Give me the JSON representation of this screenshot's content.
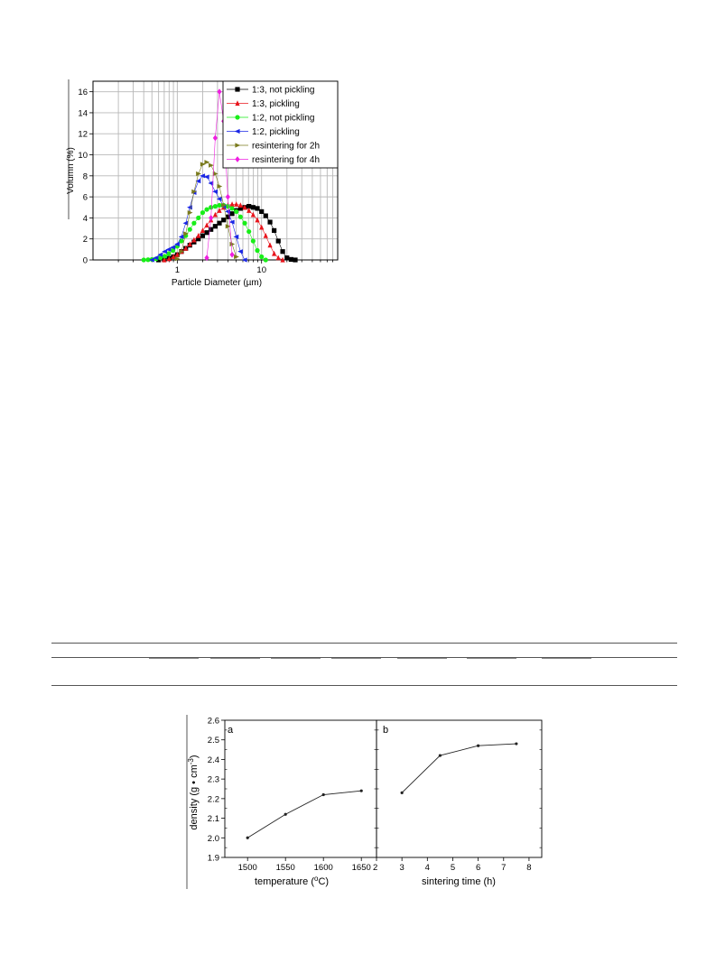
{
  "chart_data": [
    {
      "type": "scatter",
      "title": "",
      "xlabel": "Particle Diameter (µm)",
      "ylabel": "Volumn (%)",
      "xscale": "log",
      "xlim": [
        0.1,
        80
      ],
      "ylim": [
        0,
        17
      ],
      "x_ticks": [
        1,
        10
      ],
      "y_ticks": [
        0,
        2,
        4,
        6,
        8,
        10,
        12,
        14,
        16
      ],
      "grid": true,
      "legend_position": "top-right",
      "series": [
        {
          "name": "1:3, not pickling",
          "color": "#000000",
          "marker": "square",
          "x": [
            0.6,
            0.7,
            0.8,
            0.9,
            1.0,
            1.12,
            1.26,
            1.41,
            1.58,
            1.78,
            2.0,
            2.24,
            2.51,
            2.82,
            3.16,
            3.55,
            3.98,
            4.47,
            5.01,
            5.62,
            6.31,
            7.08,
            7.94,
            8.91,
            10.0,
            11.2,
            12.6,
            14.1,
            15.8,
            17.8,
            20.0,
            22.4,
            25.1
          ],
          "values": [
            0.0,
            0.05,
            0.15,
            0.3,
            0.5,
            0.8,
            1.1,
            1.4,
            1.7,
            2.0,
            2.3,
            2.6,
            2.9,
            3.2,
            3.5,
            3.8,
            4.1,
            4.4,
            4.7,
            4.9,
            5.0,
            5.1,
            5.0,
            4.9,
            4.6,
            4.2,
            3.6,
            2.8,
            1.8,
            0.8,
            0.2,
            0.05,
            0.0
          ]
        },
        {
          "name": "1:3, pickling",
          "color": "#e8141b",
          "marker": "triangle-up",
          "x": [
            0.7,
            0.8,
            0.9,
            1.0,
            1.12,
            1.26,
            1.41,
            1.58,
            1.78,
            2.0,
            2.24,
            2.51,
            2.82,
            3.16,
            3.55,
            3.98,
            4.47,
            5.01,
            5.62,
            6.31,
            7.08,
            7.94,
            8.91,
            10.0,
            11.2,
            12.6,
            14.1,
            15.8,
            17.8
          ],
          "values": [
            0.0,
            0.1,
            0.3,
            0.5,
            0.8,
            1.1,
            1.5,
            1.9,
            2.3,
            2.8,
            3.3,
            3.8,
            4.3,
            4.7,
            5.0,
            5.2,
            5.3,
            5.3,
            5.2,
            5.0,
            4.7,
            4.3,
            3.8,
            3.1,
            2.3,
            1.4,
            0.6,
            0.2,
            0.0
          ]
        },
        {
          "name": "1:2, not pickling",
          "color": "#18ee18",
          "marker": "circle",
          "x": [
            0.4,
            0.45,
            0.5,
            0.56,
            0.63,
            0.71,
            0.79,
            0.89,
            1.0,
            1.12,
            1.26,
            1.41,
            1.58,
            1.78,
            2.0,
            2.24,
            2.51,
            2.82,
            3.16,
            3.55,
            3.98,
            4.47,
            5.01,
            5.62,
            6.31,
            7.08,
            7.94,
            8.91,
            10.0,
            11.2
          ],
          "values": [
            0.0,
            0.02,
            0.05,
            0.1,
            0.2,
            0.35,
            0.6,
            0.9,
            1.3,
            1.8,
            2.3,
            2.9,
            3.5,
            4.0,
            4.5,
            4.8,
            5.0,
            5.1,
            5.2,
            5.2,
            5.1,
            4.9,
            4.6,
            4.1,
            3.5,
            2.7,
            1.8,
            0.9,
            0.3,
            0.0
          ]
        },
        {
          "name": "1:2, pickling",
          "color": "#1a26e6",
          "marker": "triangle-left",
          "x": [
            0.5,
            0.56,
            0.63,
            0.71,
            0.79,
            0.89,
            1.0,
            1.12,
            1.26,
            1.41,
            1.58,
            1.78,
            2.0,
            2.24,
            2.51,
            2.82,
            3.16,
            3.55,
            3.98,
            4.47,
            5.01,
            5.62,
            6.31
          ],
          "values": [
            0.0,
            0.2,
            0.5,
            0.8,
            1.0,
            1.2,
            1.5,
            2.2,
            3.5,
            5.0,
            6.4,
            7.5,
            8.0,
            7.9,
            7.3,
            6.5,
            5.8,
            5.1,
            4.6,
            3.6,
            2.2,
            0.8,
            0.0
          ]
        },
        {
          "name": "resintering for 2h",
          "color": "#7a7a1c",
          "marker": "triangle-right",
          "x": [
            1.0,
            1.12,
            1.26,
            1.41,
            1.58,
            1.78,
            2.0,
            2.24,
            2.51,
            2.82,
            3.16,
            3.55,
            3.98,
            4.47,
            5.01
          ],
          "values": [
            0.1,
            0.8,
            2.5,
            4.5,
            6.5,
            8.2,
            9.1,
            9.3,
            9.0,
            8.2,
            7.0,
            5.2,
            3.2,
            1.5,
            0.3
          ]
        },
        {
          "name": "resintering for 4h",
          "color": "#ef1ee0",
          "marker": "diamond",
          "x": [
            2.24,
            2.51,
            2.82,
            3.16,
            3.55,
            3.98,
            4.47
          ],
          "values": [
            0.2,
            4.0,
            11.6,
            16.0,
            13.2,
            6.0,
            0.5
          ]
        }
      ]
    },
    {
      "type": "line",
      "panel_label": "a",
      "xlabel": "temperature (",
      "xlabel_sup": "o",
      "xlabel_tail": "C)",
      "ylabel": "density (g • cm",
      "ylabel_sup": "-3",
      "ylabel_tail": ")",
      "xlim": [
        1470,
        1670
      ],
      "ylim": [
        1.9,
        2.6
      ],
      "x_ticks": [
        1500,
        1550,
        1600,
        1650
      ],
      "y_ticks": [
        "1.9",
        "2.0",
        "2.1",
        "2.2",
        "2.3",
        "2.4",
        "2.5",
        "2.6"
      ],
      "x": [
        1500,
        1550,
        1600,
        1650
      ],
      "values": [
        2.0,
        2.12,
        2.22,
        2.24
      ],
      "color": "#222222"
    },
    {
      "type": "line",
      "panel_label": "b",
      "xlabel": "sintering time (h)",
      "xlim": [
        2,
        8.5
      ],
      "ylim": [
        1.9,
        2.6
      ],
      "x_ticks": [
        2,
        3,
        4,
        5,
        6,
        7,
        8
      ],
      "x": [
        3,
        4.5,
        6,
        7.5
      ],
      "values": [
        2.23,
        2.42,
        2.47,
        2.48
      ],
      "color": "#222222"
    }
  ]
}
